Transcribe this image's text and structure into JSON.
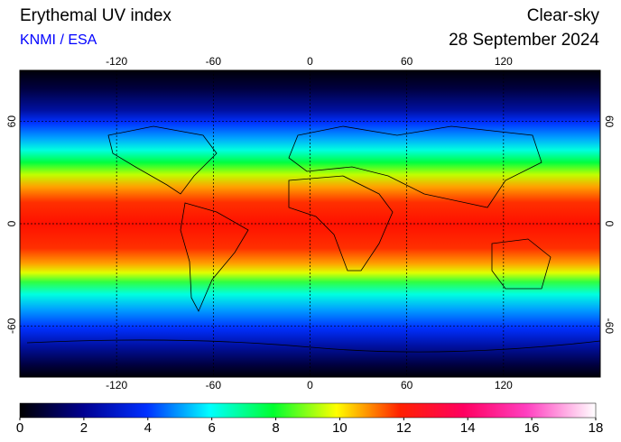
{
  "map": {
    "title": "Erythemal UV index",
    "credit": "KNMI / ESA",
    "subtitle": "Clear-sky",
    "date": "28 September 2024",
    "xlim": [
      -180,
      180
    ],
    "ylim": [
      -90,
      90
    ],
    "xticks": [
      -120,
      -60,
      0,
      60,
      120
    ],
    "yticks": [
      60,
      0,
      -60
    ],
    "grid": true,
    "colorbar": {
      "lim": [
        0,
        18
      ],
      "ticks": [
        0,
        2,
        4,
        6,
        8,
        10,
        12,
        14,
        16,
        18
      ]
    }
  }
}
